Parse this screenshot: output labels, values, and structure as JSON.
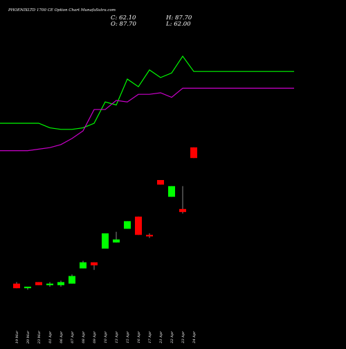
{
  "header": {
    "title": "PHOENIXLTD 1700  CE Option  Chart MunafaSutra.com",
    "close_label": "C: 62.10",
    "open_label": "O: 87.70",
    "high_label": "H: 87.70",
    "low_label": "L: 62.00"
  },
  "colors": {
    "background": "#000000",
    "bullish": "#00ff00",
    "bearish": "#ff0000",
    "line_upper": "#00ff00",
    "line_lower": "#cc00cc",
    "text": "#ffffff"
  },
  "chart_data": {
    "type": "candlestick",
    "categories": [
      "19 Mar",
      "20 Mar",
      "23 Mar",
      "01 Apr",
      "06 Apr",
      "07 Apr",
      "08 Apr",
      "09 Apr",
      "10 Apr",
      "13 Apr",
      "15 Apr",
      "16 Apr",
      "17 Apr",
      "21 Apr",
      "22 Apr",
      "23 Apr",
      "24 Apr"
    ],
    "candles": [
      {
        "open": 2.2,
        "high": 2.3,
        "low": 1.9,
        "close": 1.9
      },
      {
        "open": 1.9,
        "high": 2.0,
        "low": 1.8,
        "close": 2.0
      },
      {
        "open": 2.3,
        "high": 2.3,
        "low": 2.1,
        "close": 2.1
      },
      {
        "open": 2.1,
        "high": 2.3,
        "low": 2.0,
        "close": 2.2
      },
      {
        "open": 2.1,
        "high": 2.4,
        "low": 2.0,
        "close": 2.3
      },
      {
        "open": 2.2,
        "high": 2.8,
        "low": 2.2,
        "close": 2.7
      },
      {
        "open": 3.2,
        "high": 3.7,
        "low": 3.2,
        "close": 3.6
      },
      {
        "open": 3.6,
        "high": 3.6,
        "low": 3.1,
        "close": 3.4
      },
      {
        "open": 4.5,
        "high": 5.5,
        "low": 4.5,
        "close": 5.5
      },
      {
        "open": 4.9,
        "high": 5.6,
        "low": 4.9,
        "close": 5.1
      },
      {
        "open": 5.8,
        "high": 6.3,
        "low": 5.8,
        "close": 6.3
      },
      {
        "open": 6.6,
        "high": 6.6,
        "low": 5.4,
        "close": 5.4
      },
      {
        "open": 5.4,
        "high": 5.5,
        "low": 5.2,
        "close": 5.3
      },
      {
        "open": 9.0,
        "high": 9.0,
        "low": 8.7,
        "close": 8.7
      },
      {
        "open": 7.9,
        "high": 8.6,
        "low": 7.9,
        "close": 8.6
      },
      {
        "open": 7.1,
        "high": 8.6,
        "low": 6.8,
        "close": 6.9
      },
      {
        "open": 87.7,
        "high": 87.7,
        "low": 62.0,
        "close": 62.1
      }
    ],
    "series": [
      {
        "values": [
          4.0,
          4.0,
          4.0,
          3.7,
          3.6,
          3.6,
          3.7,
          4.0,
          5.4,
          5.2,
          6.9,
          6.4,
          7.5,
          7.0,
          7.3,
          8.4,
          7.4
        ]
      },
      {
        "values": [
          2.2,
          2.2,
          2.3,
          2.4,
          2.6,
          3.0,
          3.5,
          4.9,
          4.9,
          5.5,
          5.4,
          5.9,
          5.9,
          6.0,
          5.7,
          6.3,
          6.3
        ]
      }
    ]
  }
}
